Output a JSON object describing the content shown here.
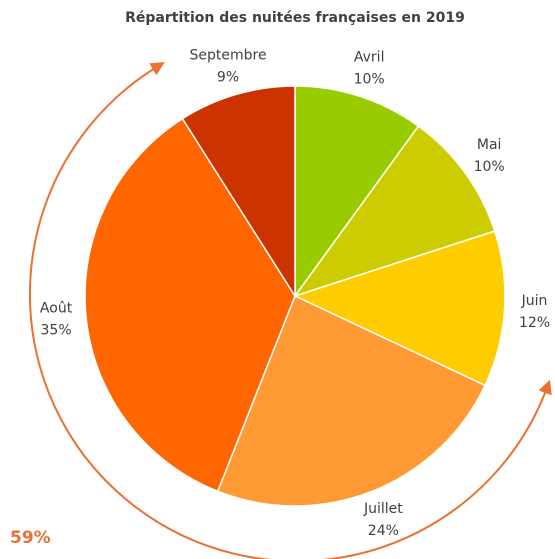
{
  "chart_data": {
    "type": "pie",
    "title": "Répartition des nuitées françaises en 2019",
    "categories": [
      "Avril",
      "Mai",
      "Juin",
      "Juillet",
      "Août",
      "Septembre"
    ],
    "values": [
      10,
      10,
      12,
      24,
      35,
      9
    ],
    "value_labels": [
      "10%",
      "10%",
      "12%",
      "24%",
      "35%",
      "9%"
    ],
    "colors": [
      "#99cc00",
      "#cccc00",
      "#ffcc00",
      "#ff9933",
      "#ff6600",
      "#cc3300"
    ],
    "annotation": "59%"
  }
}
